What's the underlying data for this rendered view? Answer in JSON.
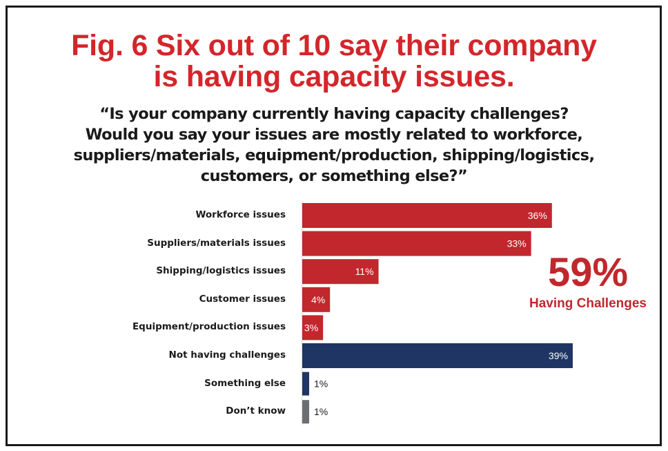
{
  "title": {
    "line1": "Fig. 6 Six out of 10 say their company",
    "line2": "is having capacity issues."
  },
  "question": {
    "line1": "“Is your company currently having capacity challenges?",
    "line2": "Would you say your issues are mostly related to workforce,",
    "line3": "suppliers/materials, equipment/production, shipping/logistics,",
    "line4": "customers, or something else?”"
  },
  "callout": {
    "value": "59%",
    "label": "Having Challenges"
  },
  "colors": {
    "title_red": "#d3262b",
    "bar_red": "#c1272d",
    "bar_navy": "#1f3564",
    "bar_gray": "#6d6e71"
  },
  "chart_data": {
    "type": "bar",
    "orientation": "horizontal",
    "categories": [
      "Workforce issues",
      "Suppliers/materials issues",
      "Shipping/logistics issues",
      "Customer issues",
      "Equipment/production issues",
      "Not having challenges",
      "Something else",
      "Don’t know"
    ],
    "values": [
      36,
      33,
      11,
      4,
      3,
      39,
      1,
      1
    ],
    "value_labels": [
      "36%",
      "33%",
      "11%",
      "4%",
      "3%",
      "39%",
      "1%",
      "1%"
    ],
    "bar_colors": [
      "#c1272d",
      "#c1272d",
      "#c1272d",
      "#c1272d",
      "#c1272d",
      "#1f3564",
      "#1f3564",
      "#6d6e71"
    ],
    "xlim": [
      0,
      40
    ],
    "grid": false,
    "legend": "none"
  }
}
